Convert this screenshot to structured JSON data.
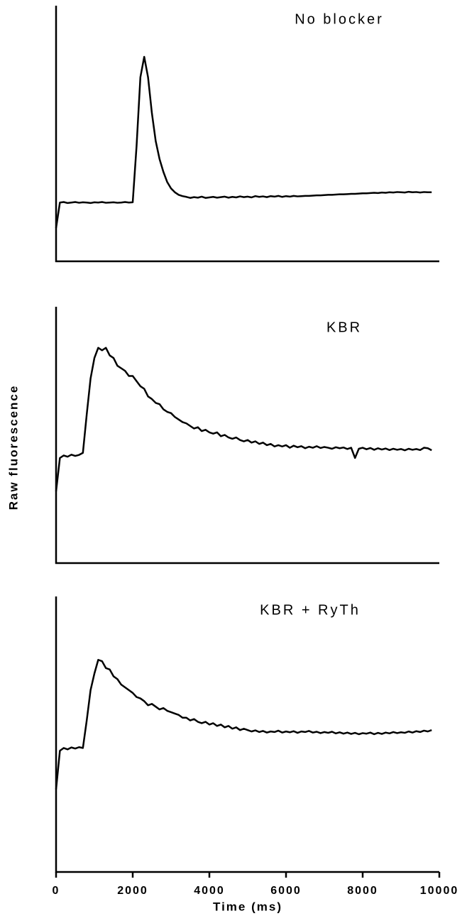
{
  "chart_data": [
    {
      "type": "line",
      "title": "No blocker",
      "ylabel": "Raw fluorescence",
      "color": "#000000",
      "xlim": [
        0,
        10000
      ],
      "ylim": [
        0,
        100
      ],
      "x": [
        0,
        100,
        200,
        300,
        400,
        500,
        600,
        700,
        800,
        900,
        1000,
        1100,
        1200,
        1300,
        1400,
        1500,
        1600,
        1700,
        1800,
        1900,
        2000,
        2100,
        2200,
        2300,
        2400,
        2500,
        2600,
        2700,
        2800,
        2900,
        3000,
        3100,
        3200,
        3300,
        3400,
        3500,
        3600,
        3700,
        3800,
        3900,
        4000,
        4100,
        4200,
        4300,
        4400,
        4500,
        4600,
        4700,
        4800,
        4900,
        5000,
        5100,
        5200,
        5300,
        5400,
        5500,
        5600,
        5700,
        5800,
        5900,
        6000,
        6100,
        6200,
        6300,
        6400,
        6500,
        6600,
        6700,
        6800,
        6900,
        7000,
        7100,
        7200,
        7300,
        7400,
        7500,
        7600,
        7700,
        7800,
        7900,
        8000,
        8100,
        8200,
        8300,
        8400,
        8500,
        8600,
        8700,
        8800,
        8900,
        9000,
        9100,
        9200,
        9300,
        9400,
        9500,
        9600,
        9700,
        9800
      ],
      "values": [
        13,
        23,
        23.2,
        22.8,
        23,
        23.2,
        22.9,
        23.1,
        23,
        22.8,
        23.1,
        23,
        23.2,
        22.9,
        23,
        23.1,
        22.9,
        23,
        23.2,
        23,
        23.1,
        45,
        72,
        80,
        72,
        58,
        47,
        40,
        35,
        31,
        28.5,
        27,
        26,
        25.5,
        25.2,
        24.8,
        25.1,
        24.9,
        25.3,
        24.8,
        25,
        25.2,
        24.9,
        25.1,
        25.3,
        24.9,
        25.2,
        25,
        25.4,
        25.1,
        25.3,
        25,
        25.5,
        25.2,
        25.4,
        25.1,
        25.5,
        25.3,
        25.6,
        25.2,
        25.5,
        25.3,
        25.6,
        25.4,
        25.5,
        25.6,
        25.6,
        25.7,
        25.8,
        25.8,
        25.9,
        26,
        26,
        26.1,
        26.2,
        26.2,
        26.3,
        26.4,
        26.4,
        26.5,
        26.6,
        26.6,
        26.7,
        26.8,
        26.7,
        26.9,
        26.8,
        27,
        26.9,
        27.1,
        27,
        26.9,
        27.2,
        27,
        27.1,
        26.9,
        27.1,
        27,
        27
      ]
    },
    {
      "type": "line",
      "title": "KBR",
      "color": "#000000",
      "xlim": [
        0,
        10000
      ],
      "ylim": [
        0,
        100
      ],
      "x": [
        0,
        100,
        200,
        300,
        400,
        500,
        600,
        700,
        800,
        900,
        1000,
        1100,
        1200,
        1300,
        1400,
        1500,
        1600,
        1700,
        1800,
        1900,
        2000,
        2100,
        2200,
        2300,
        2400,
        2500,
        2600,
        2700,
        2800,
        2900,
        3000,
        3100,
        3200,
        3300,
        3400,
        3500,
        3600,
        3700,
        3800,
        3900,
        4000,
        4100,
        4200,
        4300,
        4400,
        4500,
        4600,
        4700,
        4800,
        4900,
        5000,
        5100,
        5200,
        5300,
        5400,
        5500,
        5600,
        5700,
        5800,
        5900,
        6000,
        6100,
        6200,
        6300,
        6400,
        6500,
        6600,
        6700,
        6800,
        6900,
        7000,
        7100,
        7200,
        7300,
        7400,
        7500,
        7600,
        7700,
        7800,
        7900,
        8000,
        8100,
        8200,
        8300,
        8400,
        8500,
        8600,
        8700,
        8800,
        8900,
        9000,
        9100,
        9200,
        9300,
        9400,
        9500,
        9600,
        9700,
        9800
      ],
      "values": [
        28,
        41,
        42,
        41.5,
        42.3,
        41.8,
        42.2,
        43,
        58,
        72,
        80,
        84,
        83,
        84,
        81,
        80,
        77,
        76,
        75,
        73,
        73,
        71,
        69,
        68,
        65,
        64,
        62.5,
        62,
        60,
        59,
        58.5,
        57,
        56,
        55,
        54.5,
        53.5,
        52.5,
        53,
        51.5,
        52,
        51,
        50.5,
        51,
        49.5,
        50,
        49,
        48.5,
        49,
        48,
        47.5,
        48,
        47,
        47.5,
        46.5,
        47,
        46,
        46.5,
        45.5,
        46,
        45.5,
        46,
        45,
        45.8,
        45.2,
        45.6,
        44.8,
        45.4,
        45,
        45.6,
        44.9,
        45.3,
        45,
        44.6,
        45.2,
        44.8,
        45.1,
        44.5,
        45,
        41,
        44.6,
        45,
        44.4,
        44.9,
        44.2,
        44.8,
        44.3,
        44.7,
        44.1,
        44.6,
        44.2,
        44.5,
        44,
        44.6,
        44.2,
        44.5,
        44.1,
        45,
        44.8,
        44
      ]
    },
    {
      "type": "line",
      "title": "KBR + RyTh",
      "xlabel": "Time (ms)",
      "color": "#000000",
      "xlim": [
        0,
        10000
      ],
      "ylim": [
        0,
        100
      ],
      "xticks": [
        0,
        2000,
        4000,
        6000,
        8000,
        10000
      ],
      "x": [
        0,
        100,
        200,
        300,
        400,
        500,
        600,
        700,
        800,
        900,
        1000,
        1100,
        1200,
        1300,
        1400,
        1500,
        1600,
        1700,
        1800,
        1900,
        2000,
        2100,
        2200,
        2300,
        2400,
        2500,
        2600,
        2700,
        2800,
        2900,
        3000,
        3100,
        3200,
        3300,
        3400,
        3500,
        3600,
        3700,
        3800,
        3900,
        4000,
        4100,
        4200,
        4300,
        4400,
        4500,
        4600,
        4700,
        4800,
        4900,
        5000,
        5100,
        5200,
        5300,
        5400,
        5500,
        5600,
        5700,
        5800,
        5900,
        6000,
        6100,
        6200,
        6300,
        6400,
        6500,
        6600,
        6700,
        6800,
        6900,
        7000,
        7100,
        7200,
        7300,
        7400,
        7500,
        7600,
        7700,
        7800,
        7900,
        8000,
        8100,
        8200,
        8300,
        8400,
        8500,
        8600,
        8700,
        8800,
        8900,
        9000,
        9100,
        9200,
        9300,
        9400,
        9500,
        9600,
        9700,
        9800
      ],
      "values": [
        30,
        44,
        45,
        44.5,
        45.2,
        44.8,
        45.3,
        45,
        55,
        66,
        72,
        77,
        76.5,
        74,
        73.5,
        71,
        70,
        68,
        67,
        66,
        65,
        63.5,
        63,
        62,
        60.5,
        61,
        60,
        59,
        59.5,
        58.5,
        58,
        57.5,
        57,
        56,
        56,
        55,
        55.5,
        54.5,
        54,
        54.5,
        53.5,
        54,
        53,
        53.5,
        52.5,
        53,
        52,
        52.5,
        51.5,
        52,
        51.5,
        51,
        51.4,
        50.8,
        51.2,
        50.6,
        51,
        50.8,
        51.3,
        50.6,
        51,
        50.7,
        51.1,
        50.5,
        51,
        50.8,
        51.2,
        50.6,
        50.9,
        50.4,
        50.8,
        50.5,
        50.9,
        50.3,
        50.7,
        50.2,
        50.6,
        50.1,
        50.5,
        50,
        50.4,
        50.2,
        50.6,
        50,
        50.5,
        50.1,
        50.6,
        50.3,
        50.8,
        50.4,
        50.7,
        50.5,
        51,
        50.6,
        51.1,
        50.8,
        51.3,
        51,
        51.5
      ]
    }
  ]
}
